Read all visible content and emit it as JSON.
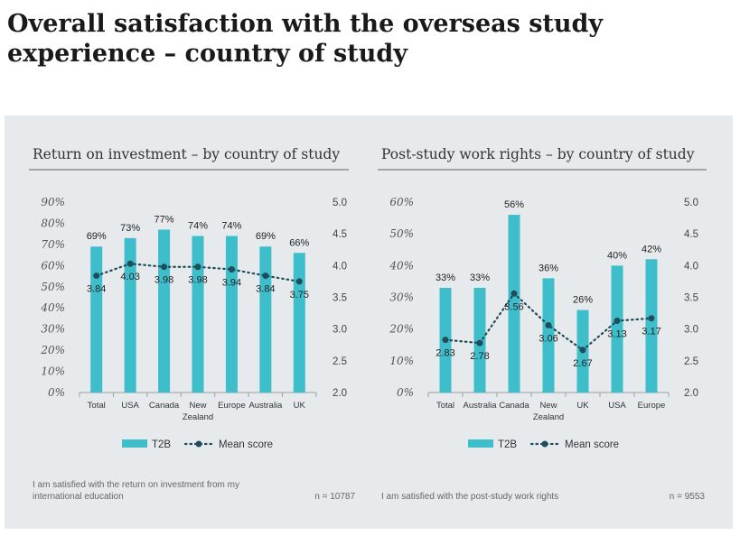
{
  "page": {
    "title_line1": "Overall satisfaction with the overseas study",
    "title_line2": "experience – country of study"
  },
  "colors": {
    "bar": "#3ebdcb",
    "mean": "#1f4e5a",
    "rule": "#8a8f93"
  },
  "chart_data": [
    {
      "type": "bar",
      "title": "Return on investment – by country of study",
      "categories": [
        "Total",
        "USA",
        "Canada",
        "New Zealand",
        "Europe",
        "Australia",
        "UK"
      ],
      "category_lines": [
        [
          "Total"
        ],
        [
          "USA"
        ],
        [
          "Canada"
        ],
        [
          "New",
          "Zealand"
        ],
        [
          "Europe"
        ],
        [
          "Australia"
        ],
        [
          "UK"
        ]
      ],
      "series": [
        {
          "name": "T2B",
          "type": "bar",
          "axis": "left",
          "values": [
            69,
            73,
            77,
            74,
            74,
            69,
            66
          ],
          "labels": [
            "69%",
            "73%",
            "77%",
            "74%",
            "74%",
            "69%",
            "66%"
          ]
        },
        {
          "name": "Mean score",
          "type": "line",
          "style": "dotted",
          "axis": "right",
          "values": [
            3.84,
            4.03,
            3.98,
            3.98,
            3.94,
            3.84,
            3.75
          ],
          "labels": [
            "3.84",
            "4.03",
            "3.98",
            "3.98",
            "3.94",
            "3.84",
            "3.75"
          ]
        }
      ],
      "ylim": [
        0,
        90
      ],
      "yticks": [
        "0%",
        "10%",
        "20%",
        "30%",
        "40%",
        "50%",
        "60%",
        "70%",
        "80%",
        "90%"
      ],
      "y2lim": [
        2.0,
        5.0
      ],
      "y2ticks": [
        "2.0",
        "2.5",
        "3.0",
        "3.5",
        "4.0",
        "4.5",
        "5.0"
      ],
      "legend": {
        "position": "bottom",
        "bar_label": "T2B",
        "line_label": "Mean score"
      },
      "footnote_lines": [
        "I am satisfied with the return on investment from my",
        "international education"
      ],
      "n_label": "n = 10787"
    },
    {
      "type": "bar",
      "title": "Post-study work rights – by country of study",
      "categories": [
        "Total",
        "Australia",
        "Canada",
        "New Zealand",
        "UK",
        "USA",
        "Europe"
      ],
      "category_lines": [
        [
          "Total"
        ],
        [
          "Australia"
        ],
        [
          "Canada"
        ],
        [
          "New",
          "Zealand"
        ],
        [
          "UK"
        ],
        [
          "USA"
        ],
        [
          "Europe"
        ]
      ],
      "series": [
        {
          "name": "T2B",
          "type": "bar",
          "axis": "left",
          "values": [
            33,
            33,
            56,
            36,
            26,
            40,
            42
          ],
          "labels": [
            "33%",
            "33%",
            "56%",
            "36%",
            "26%",
            "40%",
            "42%"
          ]
        },
        {
          "name": "Mean score",
          "type": "line",
          "style": "dotted",
          "axis": "right",
          "values": [
            2.83,
            2.78,
            3.56,
            3.06,
            2.67,
            3.13,
            3.17
          ],
          "labels": [
            "2.83",
            "2.78",
            "3.56",
            "3.06",
            "2.67",
            "3.13",
            "3.17"
          ]
        }
      ],
      "ylim": [
        0,
        60
      ],
      "yticks": [
        "0%",
        "10%",
        "20%",
        "30%",
        "40%",
        "50%",
        "60%"
      ],
      "y2lim": [
        2.0,
        5.0
      ],
      "y2ticks": [
        "2.0",
        "2.5",
        "3.0",
        "3.5",
        "4.0",
        "4.5",
        "5.0"
      ],
      "legend": {
        "position": "bottom",
        "bar_label": "T2B",
        "line_label": "Mean score"
      },
      "footnote_lines": [
        "I am satisfied with the post-study work rights"
      ],
      "n_label": "n = 9553"
    }
  ]
}
